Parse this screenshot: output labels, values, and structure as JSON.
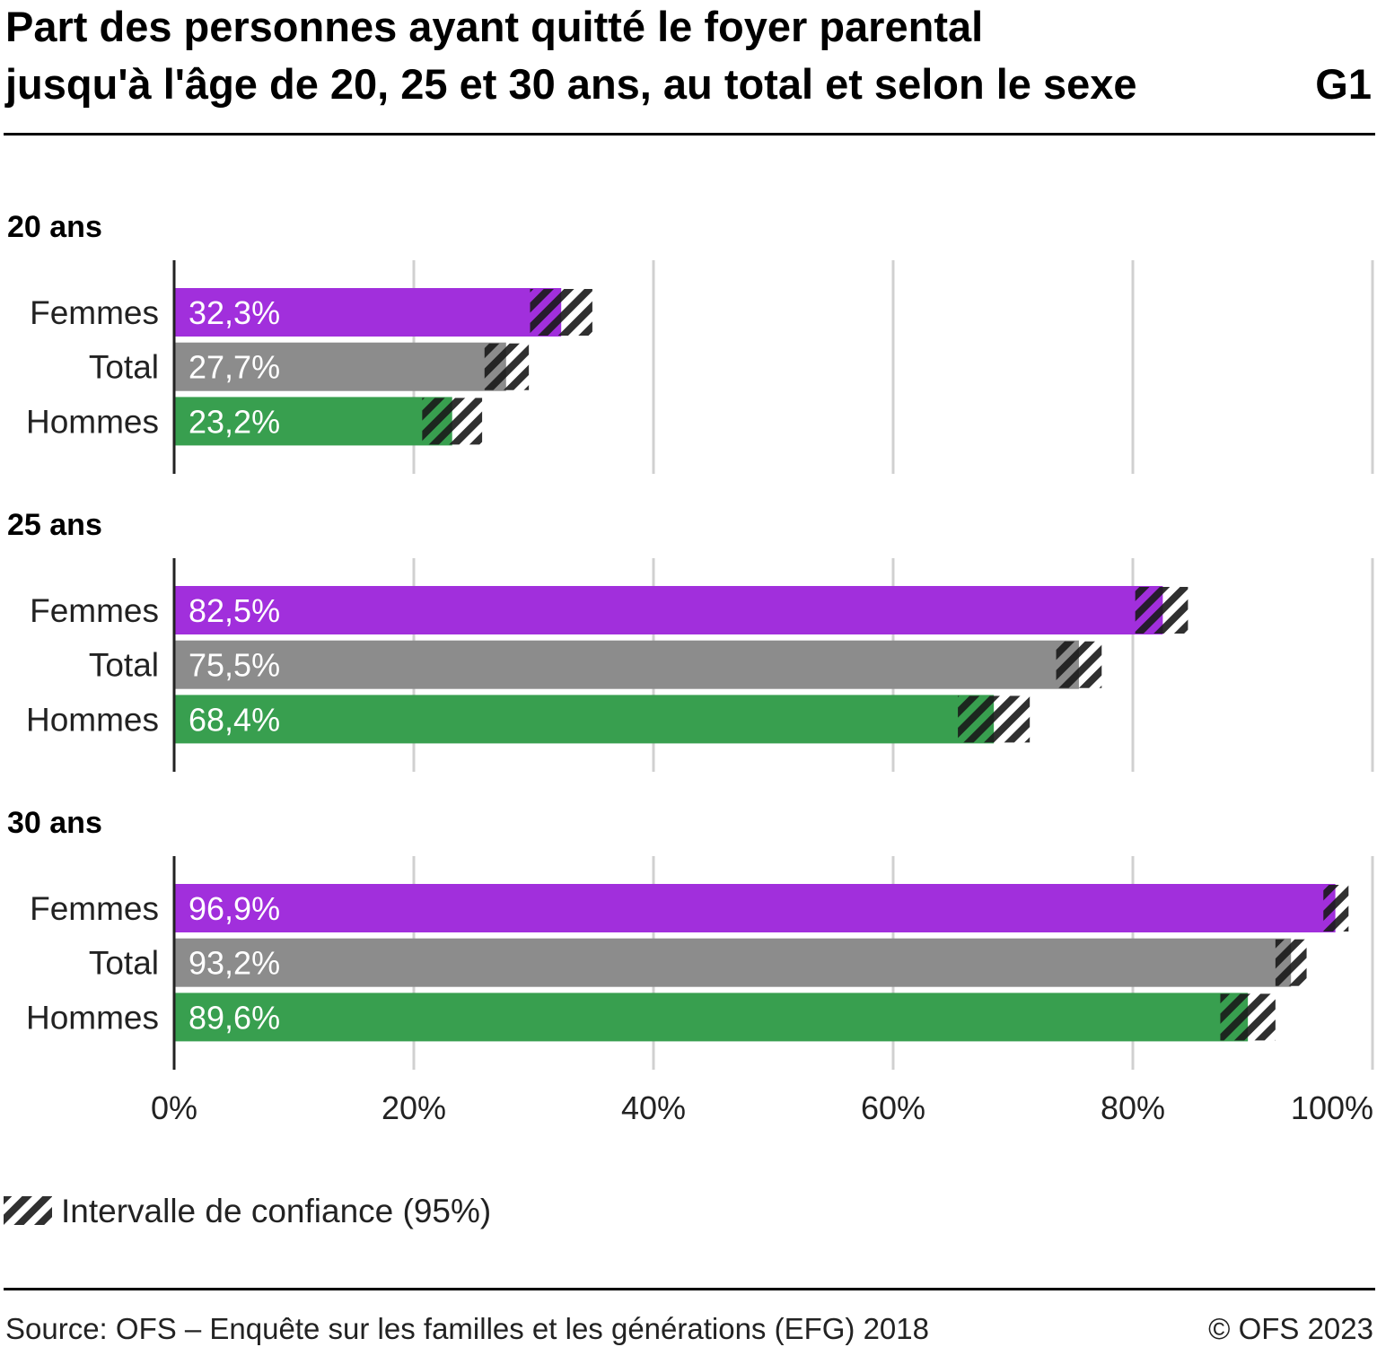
{
  "title_line1": "Part des personnes ayant quitté le foyer parental",
  "title_line2": "jusqu'à l'âge de 20, 25 et 30 ans, au total et selon le sexe",
  "graph_id": "G1",
  "legend_label": "Intervalle de confiance (95%)",
  "source": "Source: OFS – Enquête sur les familles et les générations (EFG) 2018",
  "copyright": "© OFS 2023",
  "colors": {
    "Femmes": "#a12fdc",
    "Total": "#8c8c8c",
    "Hommes": "#389f4f",
    "hatch": "#222222",
    "grid": "#d0d0d0"
  },
  "chart_data": {
    "type": "bar",
    "orientation": "horizontal",
    "xlim": [
      0,
      100
    ],
    "x_ticks": [
      "0%",
      "20%",
      "40%",
      "60%",
      "80%",
      "100%"
    ],
    "x_tick_values": [
      0,
      20,
      40,
      60,
      80,
      100
    ],
    "grid": true,
    "legend_placement": "bottom-left",
    "categories": [
      "Femmes",
      "Total",
      "Hommes"
    ],
    "panels": [
      {
        "label": "20 ans",
        "values": [
          32.3,
          27.7,
          23.2
        ],
        "value_labels": [
          "32,3%",
          "27,7%",
          "23,2%"
        ],
        "ci": [
          [
            29.7,
            34.9
          ],
          [
            25.9,
            29.6
          ],
          [
            20.7,
            25.7
          ]
        ]
      },
      {
        "label": "25 ans",
        "values": [
          82.5,
          75.5,
          68.4
        ],
        "value_labels": [
          "82,5%",
          "75,5%",
          "68,4%"
        ],
        "ci": [
          [
            80.2,
            84.6
          ],
          [
            73.6,
            77.4
          ],
          [
            65.4,
            71.4
          ]
        ]
      },
      {
        "label": "30 ans",
        "values": [
          96.9,
          93.2,
          89.6
        ],
        "value_labels": [
          "96,9%",
          "93,2%",
          "89,6%"
        ],
        "ci": [
          [
            95.9,
            98.0
          ],
          [
            91.9,
            94.5
          ],
          [
            87.3,
            91.9
          ]
        ]
      }
    ]
  }
}
